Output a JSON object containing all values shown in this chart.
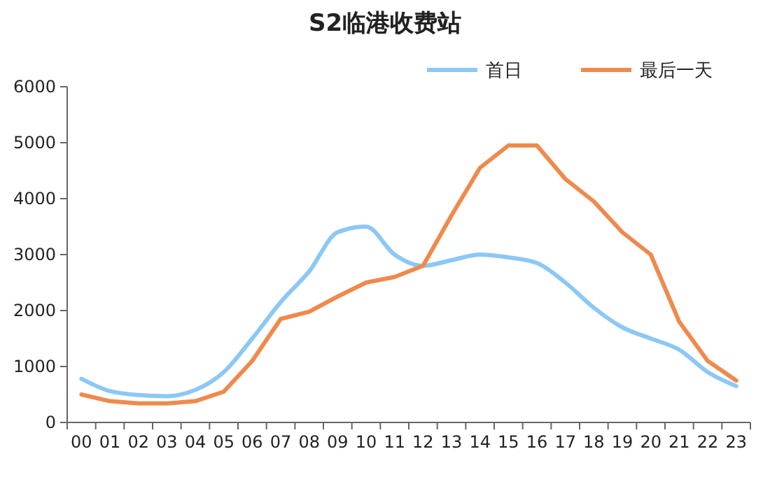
{
  "chart_data": {
    "type": "line",
    "title": "S2临港收费站",
    "categories": [
      "00",
      "01",
      "02",
      "03",
      "04",
      "05",
      "06",
      "07",
      "08",
      "09",
      "10",
      "11",
      "12",
      "13",
      "14",
      "15",
      "16",
      "17",
      "18",
      "19",
      "20",
      "21",
      "22",
      "23"
    ],
    "series": [
      {
        "name": "首日",
        "color": "#8cc8f5",
        "values": [
          780,
          560,
          490,
          470,
          580,
          900,
          1500,
          2150,
          2700,
          3400,
          3500,
          3000,
          2800,
          2900,
          3000,
          2950,
          2850,
          2500,
          2050,
          1700,
          1500,
          1300,
          900,
          650
        ]
      },
      {
        "name": "最后一天",
        "color": "#ef8a4c",
        "values": [
          500,
          380,
          340,
          340,
          380,
          550,
          1100,
          1850,
          1980,
          2250,
          2500,
          2600,
          2800,
          3700,
          4550,
          4950,
          4950,
          4350,
          3950,
          3400,
          3000,
          1800,
          1100,
          750
        ]
      }
    ],
    "ylim": [
      0,
      6000
    ],
    "yticks": [
      0,
      1000,
      2000,
      3000,
      4000,
      5000,
      6000
    ],
    "grid": false,
    "legend": "top right",
    "line_style": "solid",
    "marker": "none"
  }
}
